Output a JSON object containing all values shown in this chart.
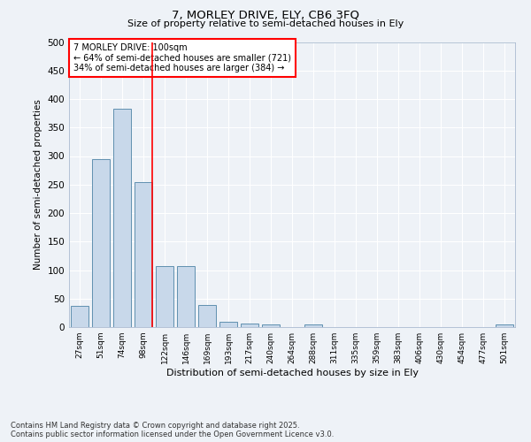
{
  "title1": "7, MORLEY DRIVE, ELY, CB6 3FQ",
  "title2": "Size of property relative to semi-detached houses in Ely",
  "xlabel": "Distribution of semi-detached houses by size in Ely",
  "ylabel": "Number of semi-detached properties",
  "bins": [
    "27sqm",
    "51sqm",
    "74sqm",
    "98sqm",
    "122sqm",
    "146sqm",
    "169sqm",
    "193sqm",
    "217sqm",
    "240sqm",
    "264sqm",
    "288sqm",
    "311sqm",
    "335sqm",
    "359sqm",
    "383sqm",
    "406sqm",
    "430sqm",
    "454sqm",
    "477sqm",
    "501sqm"
  ],
  "values": [
    37,
    295,
    383,
    255,
    107,
    107,
    38,
    10,
    6,
    5,
    0,
    5,
    0,
    0,
    0,
    0,
    0,
    0,
    0,
    0,
    5
  ],
  "bar_color": "#c8d8ea",
  "bar_edge_color": "#6090b0",
  "red_line_index": 3,
  "annotation_text": "7 MORLEY DRIVE: 100sqm\n← 64% of semi-detached houses are smaller (721)\n34% of semi-detached houses are larger (384) →",
  "annotation_box_color": "white",
  "annotation_box_edge_color": "red",
  "ylim": [
    0,
    500
  ],
  "yticks": [
    0,
    50,
    100,
    150,
    200,
    250,
    300,
    350,
    400,
    450,
    500
  ],
  "footer_line1": "Contains HM Land Registry data © Crown copyright and database right 2025.",
  "footer_line2": "Contains public sector information licensed under the Open Government Licence v3.0.",
  "background_color": "#eef2f7",
  "grid_color": "white"
}
